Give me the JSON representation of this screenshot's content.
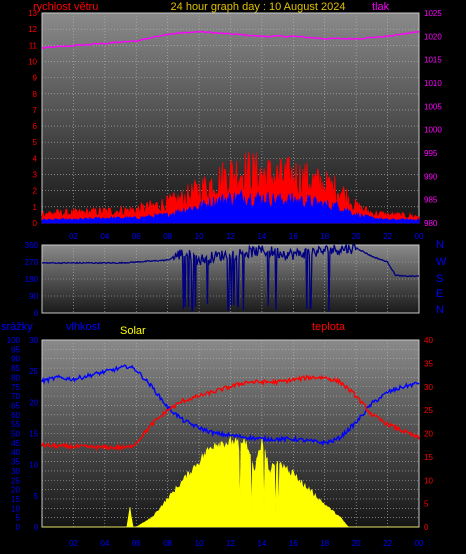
{
  "chart_data": [
    {
      "type": "line",
      "title": "24 hour graph day : 10 August 2024",
      "left_axis_label": "rychlost větru",
      "right_axis_label": "tlak",
      "x_ticks": [
        "02",
        "04",
        "06",
        "08",
        "10",
        "12",
        "14",
        "16",
        "18",
        "20",
        "22",
        "00"
      ],
      "ylim_left": [
        0,
        13
      ],
      "yticks_left": [
        "0",
        "1",
        "2",
        "3",
        "4",
        "5",
        "6",
        "7",
        "8",
        "9",
        "10",
        "11",
        "12",
        "13"
      ],
      "ylim_right": [
        980,
        1025
      ],
      "yticks_right": [
        "980",
        "985",
        "990",
        "995",
        "1000",
        "1005",
        "1010",
        "1015",
        "1020",
        "1025"
      ],
      "series": [
        {
          "role": "pressure",
          "color": "#ff00ff",
          "axis": "right",
          "x": [
            0,
            2,
            4,
            6,
            8,
            10,
            12,
            14,
            16,
            18,
            20,
            22,
            24
          ],
          "values": [
            1017.5,
            1018,
            1018.5,
            1019,
            1020.5,
            1021,
            1020.5,
            1020,
            1020,
            1019.5,
            1019.5,
            1020,
            1021
          ]
        },
        {
          "role": "gust",
          "color": "#ff0000",
          "axis": "left",
          "x": [
            0,
            2,
            4,
            6,
            8,
            9,
            10,
            11,
            12,
            13,
            14,
            15,
            16,
            17,
            18,
            19,
            20,
            21,
            22,
            24
          ],
          "values": [
            0.6,
            0.6,
            0.7,
            0.8,
            1.2,
            1.5,
            2,
            2.5,
            3,
            3.2,
            3,
            2.8,
            2.9,
            2.6,
            2.3,
            2,
            1,
            0.6,
            0.5,
            0.4
          ]
        },
        {
          "role": "average",
          "color": "#0000ff",
          "axis": "left",
          "x": [
            0,
            2,
            4,
            6,
            8,
            9,
            10,
            11,
            12,
            13,
            14,
            15,
            16,
            17,
            18,
            19,
            20,
            21,
            22,
            24
          ],
          "values": [
            0.2,
            0.2,
            0.3,
            0.3,
            0.5,
            0.8,
            1,
            1.3,
            1.5,
            1.6,
            1.5,
            1.4,
            1.4,
            1.3,
            1.1,
            1,
            0.5,
            0.3,
            0.2,
            0.2
          ]
        }
      ]
    },
    {
      "type": "line",
      "ylim": [
        0,
        360
      ],
      "yticks": [
        "0",
        "90",
        "180",
        "270",
        "360"
      ],
      "x_ticks": [
        "02",
        "04",
        "06",
        "08",
        "10",
        "12",
        "14",
        "16",
        "18",
        "20",
        "22",
        "00"
      ],
      "compass": [
        "N",
        "W",
        "S",
        "E",
        "N"
      ],
      "series": [
        {
          "role": "wind-direction",
          "color": "#000080",
          "x": [
            0,
            3,
            5,
            6,
            7,
            8,
            8.5,
            9,
            10,
            11,
            12,
            13,
            14,
            15,
            16,
            17,
            18,
            19,
            20,
            21,
            22,
            22.5,
            23,
            24
          ],
          "values": [
            265,
            265,
            265,
            270,
            275,
            280,
            300,
            320,
            280,
            300,
            310,
            320,
            330,
            320,
            310,
            320,
            330,
            340,
            345,
            300,
            270,
            200,
            195,
            195
          ]
        }
      ]
    },
    {
      "type": "line",
      "labels": {
        "rain": "srážky",
        "humidity": "vlhkost",
        "solar": "Solar",
        "temperature": "teplota"
      },
      "x_ticks": [
        "02",
        "04",
        "06",
        "08",
        "10",
        "12",
        "14",
        "16",
        "18",
        "20",
        "22",
        "00"
      ],
      "rain_axis": {
        "ylim": [
          0,
          100
        ],
        "ticks": [
          "0",
          "5",
          "10",
          "15",
          "20",
          "25",
          "30",
          "35",
          "40",
          "45",
          "50",
          "55",
          "60",
          "65",
          "70",
          "75",
          "80",
          "85",
          "90",
          "95",
          "100"
        ]
      },
      "humidity_axis": {
        "ylim": [
          0,
          30
        ],
        "ticks": [
          "0",
          "5",
          "10",
          "15",
          "20",
          "25",
          "30"
        ]
      },
      "temperature_axis": {
        "ylim": [
          0,
          40
        ],
        "ticks": [
          "0",
          "5",
          "10",
          "15",
          "20",
          "25",
          "30",
          "35",
          "40"
        ]
      },
      "series": [
        {
          "role": "humidity",
          "color": "#0000ff",
          "axis": "left",
          "x": [
            0,
            1,
            2,
            3,
            4,
            5,
            5.5,
            6,
            7,
            8,
            9,
            10,
            11,
            12,
            13,
            14,
            15,
            16,
            17,
            18,
            18.5,
            19,
            20,
            21,
            22,
            23,
            24
          ],
          "values": [
            78,
            80,
            79,
            81,
            83,
            85,
            86,
            84,
            75,
            64,
            57,
            53,
            50,
            49,
            48,
            47,
            47,
            47,
            46,
            45,
            46,
            48,
            56,
            66,
            72,
            75,
            77
          ]
        },
        {
          "role": "temperature",
          "color": "#ff0000",
          "axis": "right",
          "x": [
            0,
            1,
            2,
            3,
            4,
            5,
            5.5,
            6,
            7,
            8,
            9,
            10,
            11,
            12,
            13,
            14,
            15,
            16,
            17,
            18,
            19,
            20,
            21,
            22,
            23,
            24
          ],
          "values": [
            17.5,
            17.3,
            17.2,
            17.1,
            17,
            17,
            17,
            18,
            22,
            25,
            27,
            28,
            29,
            30,
            31,
            31,
            31,
            31.5,
            32,
            32,
            31,
            28,
            24,
            22,
            20.5,
            19
          ]
        },
        {
          "role": "solar",
          "color": "#ffff00",
          "axis": "left",
          "x": [
            0,
            5.4,
            5.6,
            5.8,
            6,
            7,
            8,
            9,
            10,
            11,
            12,
            12.5,
            13,
            13.5,
            14,
            14.5,
            15,
            16,
            17,
            18,
            19,
            19.5,
            20,
            24
          ],
          "values": [
            0,
            0,
            10,
            0,
            0,
            5,
            15,
            25,
            35,
            45,
            45,
            44,
            45,
            30,
            45,
            30,
            35,
            28,
            20,
            12,
            5,
            0,
            0,
            0
          ]
        }
      ]
    }
  ]
}
